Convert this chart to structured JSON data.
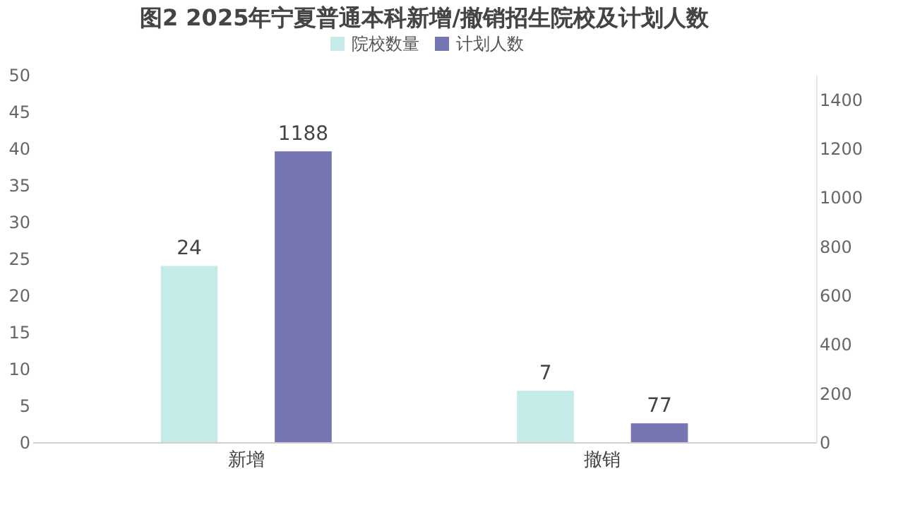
{
  "chart_data": {
    "type": "bar",
    "title": "图2 2025年宁夏普通本科新增/撤销招生院校及计划人数",
    "categories": [
      "新增",
      "撤销"
    ],
    "series": [
      {
        "name": "院校数量",
        "color": "#c5ebe8",
        "values": [
          24,
          7
        ]
      },
      {
        "name": "计划人数",
        "color": "#7676b2",
        "values": [
          1188,
          77
        ],
        "axis": "y2"
      }
    ],
    "ylim": [
      0,
      50
    ],
    "yticks": [
      0,
      5,
      10,
      15,
      20,
      25,
      30,
      35,
      40,
      45,
      50
    ],
    "y2lim": [
      0,
      1500
    ],
    "y2ticks": [
      0,
      200,
      400,
      600,
      800,
      1000,
      1200,
      1400
    ],
    "data_labels": true,
    "legend": "top",
    "grid": false
  }
}
